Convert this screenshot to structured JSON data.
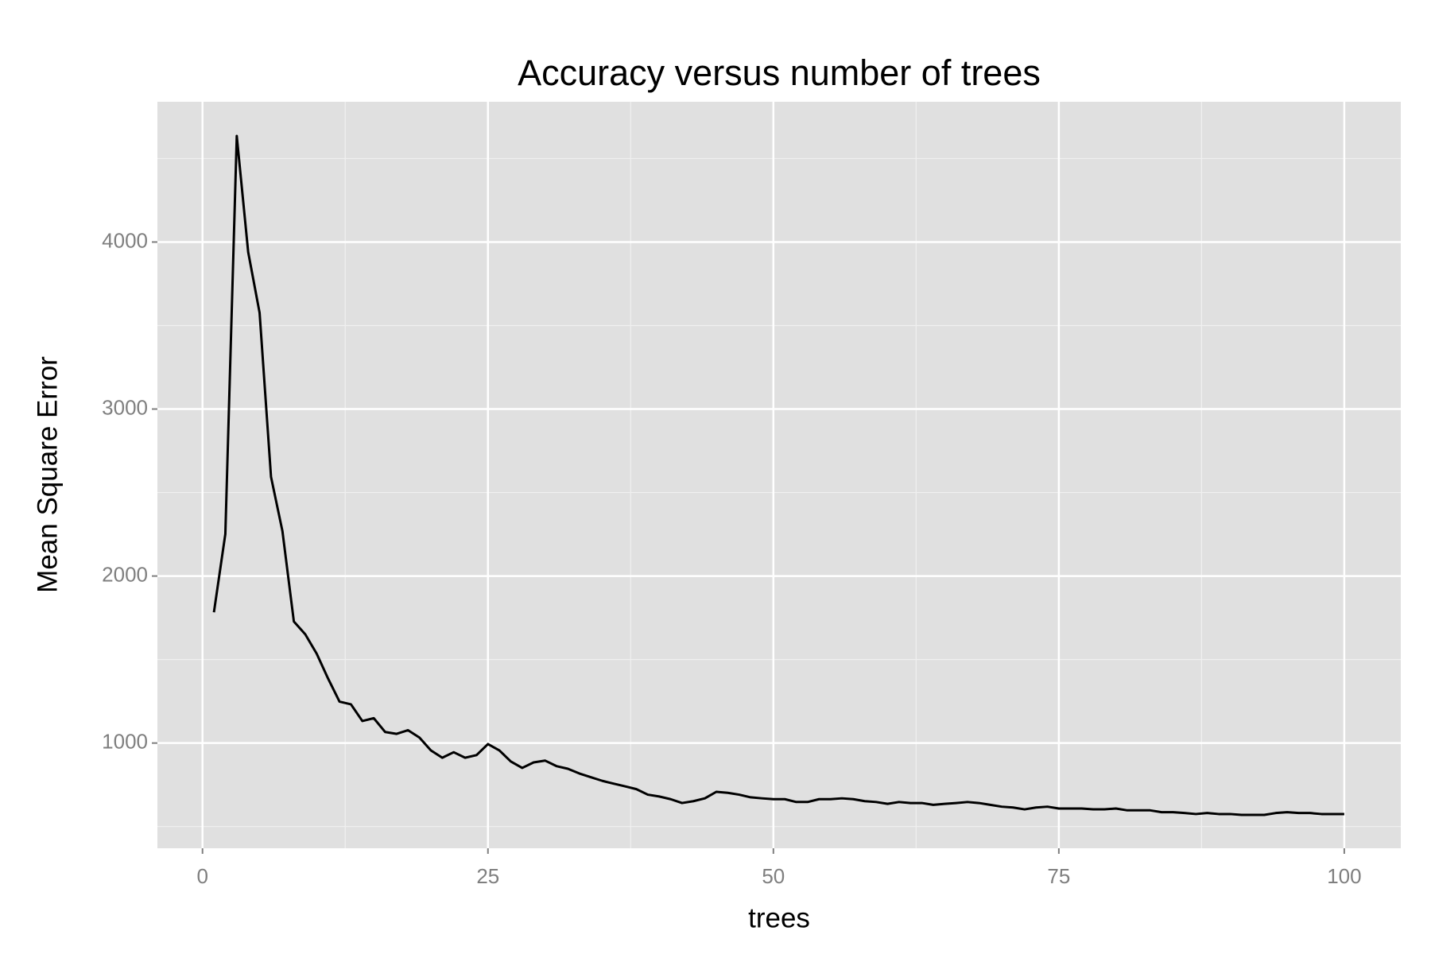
{
  "chart_data": {
    "type": "line",
    "title": "Accuracy versus number of trees",
    "x_label": "trees",
    "y_label": "Mean Square Error",
    "x": [
      1,
      2,
      3,
      4,
      5,
      6,
      7,
      8,
      9,
      10,
      11,
      12,
      13,
      14,
      15,
      16,
      17,
      18,
      19,
      20,
      21,
      22,
      23,
      24,
      25,
      26,
      27,
      28,
      29,
      30,
      31,
      32,
      33,
      34,
      35,
      36,
      37,
      38,
      39,
      40,
      41,
      42,
      43,
      44,
      45,
      46,
      47,
      48,
      49,
      50,
      51,
      52,
      53,
      54,
      55,
      56,
      57,
      58,
      59,
      60,
      61,
      62,
      63,
      64,
      65,
      66,
      67,
      68,
      69,
      70,
      71,
      72,
      73,
      74,
      75,
      76,
      77,
      78,
      79,
      80,
      81,
      82,
      83,
      84,
      85,
      86,
      87,
      88,
      89,
      90,
      91,
      92,
      93,
      94,
      95,
      96,
      97,
      98,
      99,
      100
    ],
    "series": [
      {
        "color": "#000000",
        "values": [
          1783,
          2252,
          4635,
          3940,
          3576,
          2594,
          2269,
          1728,
          1651,
          1535,
          1386,
          1248,
          1232,
          1132,
          1149,
          1066,
          1055,
          1077,
          1033,
          956,
          912,
          945,
          912,
          928,
          994,
          956,
          890,
          851,
          884,
          895,
          862,
          846,
          818,
          796,
          774,
          757,
          741,
          724,
          691,
          680,
          664,
          641,
          652,
          669,
          708,
          702,
          691,
          675,
          669,
          664,
          664,
          647,
          647,
          664,
          664,
          669,
          664,
          652,
          647,
          636,
          647,
          641,
          641,
          630,
          636,
          641,
          647,
          641,
          630,
          619,
          614,
          603,
          614,
          619,
          608,
          608,
          608,
          603,
          603,
          608,
          597,
          597,
          597,
          586,
          586,
          581,
          575,
          581,
          575,
          575,
          570,
          570,
          570,
          581,
          586,
          581,
          581,
          575,
          575,
          575
        ]
      }
    ],
    "xlim": [
      -3.95,
      104.95
    ],
    "ylim": [
      370,
      4840
    ],
    "xticks": [
      0,
      25,
      50,
      75,
      100
    ],
    "yticks": [
      1000,
      2000,
      3000,
      4000
    ],
    "x_minor_ticks": [
      12.5,
      37.5,
      62.5,
      87.5
    ],
    "y_minor_ticks": [
      500,
      1500,
      2500,
      3500,
      4500
    ],
    "grid": true,
    "background": "#e0e0e0"
  }
}
